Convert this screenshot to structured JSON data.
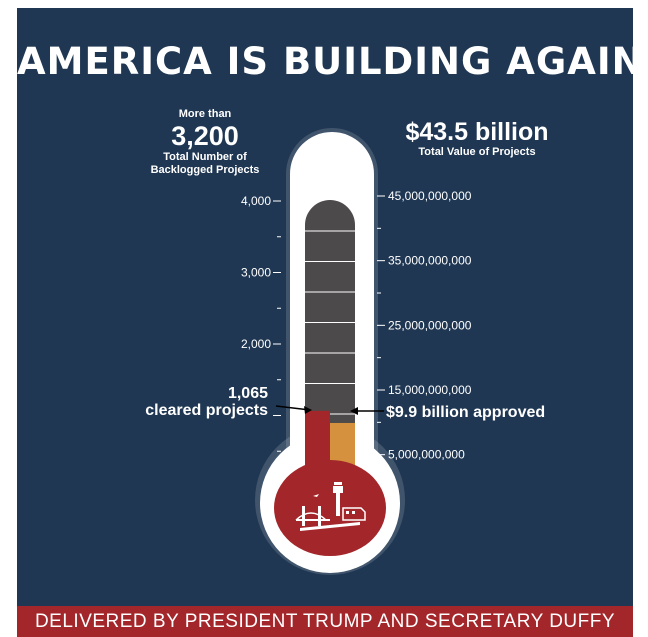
{
  "title": "AMERICA IS BUILDING AGAIN",
  "left_stat": {
    "prefix": "More than",
    "value": "3,200",
    "label_line1": "Total Number of",
    "label_line2": "Backlogged Projects"
  },
  "right_stat": {
    "value": "$43.5 billion",
    "label": "Total Value of Projects"
  },
  "footer": "DELIVERED BY PRESIDENT TRUMP AND SECRETARY DUFFY",
  "chart_data": {
    "type": "thermometer",
    "left_axis": {
      "ticks": [
        1000,
        2000,
        3000,
        4000
      ],
      "tick_labels": [
        "2,000",
        "3,000",
        "4,000"
      ],
      "labeled_values": [
        2000,
        3000,
        4000
      ],
      "max": 4200
    },
    "right_axis": {
      "labeled_values": [
        5000000000,
        15000000000,
        25000000000,
        35000000000,
        45000000000
      ],
      "tick_labels": [
        "5,000,000,000",
        "15,000,000,000",
        "25,000,000,000",
        "35,000,000,000",
        "45,000,000,000"
      ],
      "max": 47000000000
    },
    "total_projects": 3200,
    "cleared_projects": 1065,
    "total_value": 43500000000,
    "approved_value": 9900000000,
    "annotations": {
      "cleared_value": "1,065",
      "cleared_label": "cleared projects",
      "approved_label": "$9.9 billion approved"
    },
    "colors": {
      "background": "#1f3753",
      "tube_empty": "#4d4a4b",
      "cleared_fill": "#a3262a",
      "approved_fill": "#d6913f",
      "bulb": "#a3262a",
      "footer": "#a3262a"
    }
  }
}
